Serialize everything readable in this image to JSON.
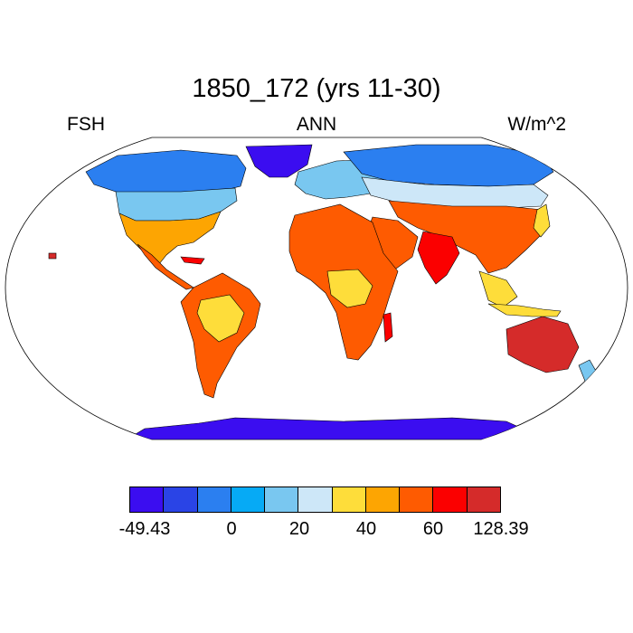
{
  "header": {
    "title": "1850_172 (yrs 11-30)",
    "left_label": "FSH",
    "center_label": "ANN",
    "right_label": "W/m^2"
  },
  "colorbar": {
    "colors": [
      "#3b0df0",
      "#2a44e6",
      "#2b7ff0",
      "#06aaf5",
      "#79c7f0",
      "#cde7f8",
      "#fedd3a",
      "#fda502",
      "#fe5b01",
      "#fb0000",
      "#d52b2a"
    ],
    "labels": [
      "-49.43",
      "0",
      "20",
      "40",
      "60",
      "128.39"
    ]
  }
}
